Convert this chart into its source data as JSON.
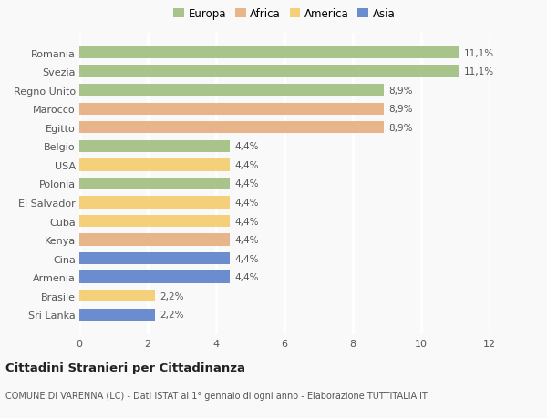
{
  "categories": [
    "Sri Lanka",
    "Brasile",
    "Armenia",
    "Cina",
    "Kenya",
    "Cuba",
    "El Salvador",
    "Polonia",
    "USA",
    "Belgio",
    "Egitto",
    "Marocco",
    "Regno Unito",
    "Svezia",
    "Romania"
  ],
  "values": [
    2.2,
    2.2,
    4.4,
    4.4,
    4.4,
    4.4,
    4.4,
    4.4,
    4.4,
    4.4,
    8.9,
    8.9,
    8.9,
    11.1,
    11.1
  ],
  "labels": [
    "2,2%",
    "2,2%",
    "4,4%",
    "4,4%",
    "4,4%",
    "4,4%",
    "4,4%",
    "4,4%",
    "4,4%",
    "4,4%",
    "8,9%",
    "8,9%",
    "8,9%",
    "11,1%",
    "11,1%"
  ],
  "colors": [
    "#6b8cce",
    "#f5d07a",
    "#6b8cce",
    "#6b8cce",
    "#e8b48a",
    "#f5d07a",
    "#f5d07a",
    "#a8c48a",
    "#f5d07a",
    "#a8c48a",
    "#e8b48a",
    "#e8b48a",
    "#a8c48a",
    "#a8c48a",
    "#a8c48a"
  ],
  "legend": [
    {
      "label": "Europa",
      "color": "#a8c48a"
    },
    {
      "label": "Africa",
      "color": "#e8b48a"
    },
    {
      "label": "America",
      "color": "#f5d07a"
    },
    {
      "label": "Asia",
      "color": "#6b8cce"
    }
  ],
  "xlim": [
    0,
    12
  ],
  "xticks": [
    0,
    2,
    4,
    6,
    8,
    10,
    12
  ],
  "title": "Cittadini Stranieri per Cittadinanza",
  "subtitle": "COMUNE DI VARENNA (LC) - Dati ISTAT al 1° gennaio di ogni anno - Elaborazione TUTTITALIA.IT",
  "background_color": "#f9f9f9",
  "grid_color": "#ffffff",
  "bar_height": 0.65,
  "label_fontsize": 7.5,
  "tick_fontsize": 8,
  "legend_fontsize": 8.5
}
